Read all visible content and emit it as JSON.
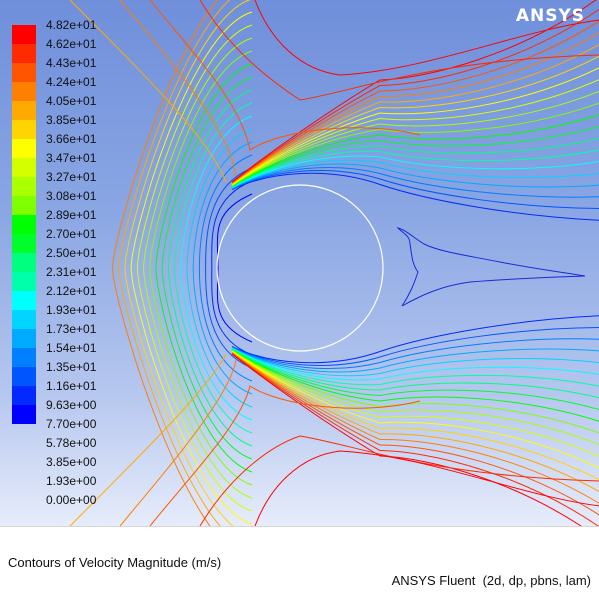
{
  "app": {
    "logo": "ANSYS"
  },
  "legend": {
    "colors": [
      "#ff0000",
      "#ff2a00",
      "#ff5500",
      "#ff7f00",
      "#ffaa00",
      "#ffd400",
      "#ffff00",
      "#d4ff00",
      "#aaff00",
      "#7fff00",
      "#00ff00",
      "#00ff2a",
      "#00ff7f",
      "#00ffaa",
      "#00ffff",
      "#00d4ff",
      "#00aaff",
      "#007fff",
      "#0055ff",
      "#002aff",
      "#0000ff"
    ],
    "labels": [
      "4.82e+01",
      "4.62e+01",
      "4.43e+01",
      "4.24e+01",
      "4.05e+01",
      "3.85e+01",
      "3.66e+01",
      "3.47e+01",
      "3.27e+01",
      "3.08e+01",
      "2.89e+01",
      "2.70e+01",
      "2.50e+01",
      "2.31e+01",
      "2.12e+01",
      "1.93e+01",
      "1.73e+01",
      "1.54e+01",
      "1.35e+01",
      "1.16e+01",
      "9.63e+00",
      "7.70e+00",
      "5.78e+00",
      "3.85e+00",
      "1.93e+00",
      "0.00e+00"
    ]
  },
  "footer": {
    "title": "Contours of Velocity Magnitude (m/s)",
    "solver": "ANSYS Fluent  (2d, dp, pbns, lam)"
  }
}
